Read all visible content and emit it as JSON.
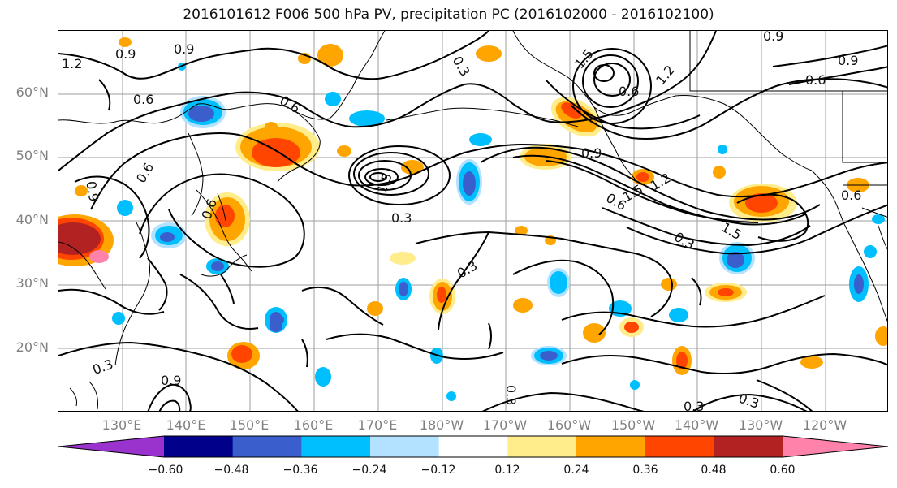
{
  "title": "2016101612 F006 500 hPa PV, precipitation PC (2016102000 - 2016102100)",
  "lat_labels": [
    "60°N",
    "50°N",
    "40°N",
    "30°N",
    "20°N"
  ],
  "lon_labels": [
    "130°E",
    "140°E",
    "150°E",
    "160°E",
    "170°E",
    "180°W",
    "170°W",
    "160°W",
    "150°W",
    "140°W",
    "130°W",
    "120°W"
  ],
  "colorbar": {
    "ticks": [
      "−0.60",
      "−0.48",
      "−0.36",
      "−0.24",
      "−0.12",
      "0.12",
      "0.24",
      "0.36",
      "0.48",
      "0.60"
    ],
    "colors": [
      "#9a32cd",
      "#00008b",
      "#3a5fcd",
      "#00bfff",
      "#b2e2ff",
      "#ffffff",
      "#ffec8b",
      "#ffa500",
      "#ff4500",
      "#b22222",
      "#ff82ab"
    ]
  },
  "contour_labels": [
    "1.2",
    "0.9",
    "0.9",
    "0.3",
    "1.5",
    "1.2",
    "0.9",
    "0.9",
    "0.6",
    "0.9",
    "0.6",
    "0.6",
    "0.9",
    "0.3",
    "0.6",
    "1.5",
    "0.9",
    "0.6",
    "1.2",
    "1.5",
    "0.6",
    "0.3",
    "1.5",
    "0.3",
    "0.3",
    "0.3",
    "0.3",
    "0.3",
    "0.6",
    "0.6"
  ],
  "colors": {
    "contour": "#000000",
    "grid": "#9e9e9e",
    "axis_label": "#808080"
  }
}
